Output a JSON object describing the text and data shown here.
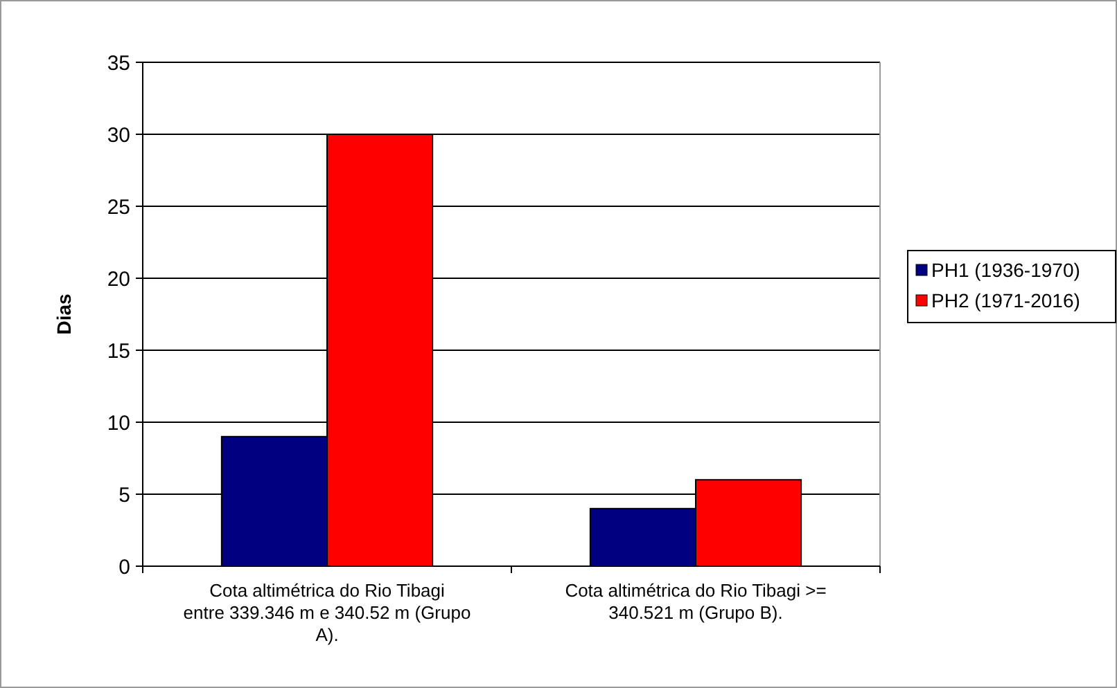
{
  "chart_data": {
    "type": "bar",
    "ylabel": "Dias",
    "categories": [
      "Cota altimétrica do Rio Tibagi entre 339.346 m e 340.52 m (Grupo A).",
      "Cota altimétrica do Rio Tibagi >= 340.521 m (Grupo B)."
    ],
    "series": [
      {
        "name": "PH1 (1936-1970)",
        "color": "#000080",
        "values": [
          9,
          4
        ]
      },
      {
        "name": "PH2 (1971-2016)",
        "color": "#ff0000",
        "values": [
          30,
          6
        ]
      }
    ],
    "ylim": [
      0,
      35
    ],
    "yticks": [
      0,
      5,
      10,
      15,
      20,
      25,
      30,
      35
    ],
    "grid": "y",
    "legend": "right"
  }
}
